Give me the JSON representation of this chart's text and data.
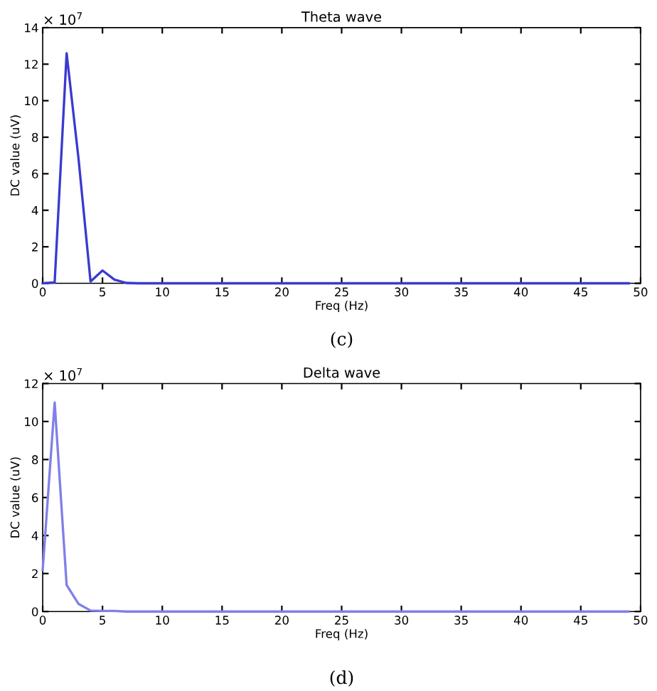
{
  "chart_data": [
    {
      "type": "line",
      "title": "Theta wave",
      "xlabel": "Freq (Hz)",
      "ylabel": "DC value (uV)",
      "annotations": [
        "× 10$^{7}$",
        "(c)"
      ],
      "x": [
        0,
        1,
        2,
        3,
        4,
        5,
        6,
        7,
        8,
        10,
        15,
        20,
        25,
        30,
        35,
        40,
        45,
        49
      ],
      "series": [
        {
          "color": "#3a3ad0",
          "values": [
            0,
            0.05,
            12.6,
            6.8,
            0.1,
            0.7,
            0.2,
            0.02,
            0,
            0,
            0,
            0,
            0,
            0,
            0,
            0,
            0,
            0
          ]
        }
      ],
      "xlim": [
        0,
        50
      ],
      "ylim": [
        0,
        14
      ],
      "xticks": [
        0,
        5,
        10,
        15,
        20,
        25,
        30,
        35,
        40,
        45,
        50
      ],
      "yticks": [
        0,
        2,
        4,
        6,
        8,
        10,
        12,
        14
      ],
      "grid": false,
      "legend": false,
      "marker": "none",
      "line_style": "solid"
    },
    {
      "type": "line",
      "title": "Delta wave",
      "xlabel": "Freq (Hz)",
      "ylabel": "DC value (uV)",
      "annotations": [
        "× 10$^{7}$",
        "(d)"
      ],
      "x": [
        0,
        1,
        2,
        3,
        4,
        5,
        6,
        7,
        8,
        10,
        15,
        20,
        25,
        30,
        35,
        40,
        45,
        49
      ],
      "series": [
        {
          "color": "#8080e8",
          "values": [
            2.2,
            11,
            1.4,
            0.4,
            0.05,
            0.03,
            0.03,
            0,
            0,
            0,
            0,
            0,
            0,
            0,
            0,
            0,
            0,
            0
          ]
        }
      ],
      "xlim": [
        0,
        50
      ],
      "ylim": [
        0,
        12
      ],
      "xticks": [
        0,
        5,
        10,
        15,
        20,
        25,
        30,
        35,
        40,
        45,
        50
      ],
      "yticks": [
        0,
        2,
        4,
        6,
        8,
        10,
        12
      ],
      "grid": false,
      "legend": false,
      "marker": "none",
      "line_style": "solid"
    }
  ]
}
